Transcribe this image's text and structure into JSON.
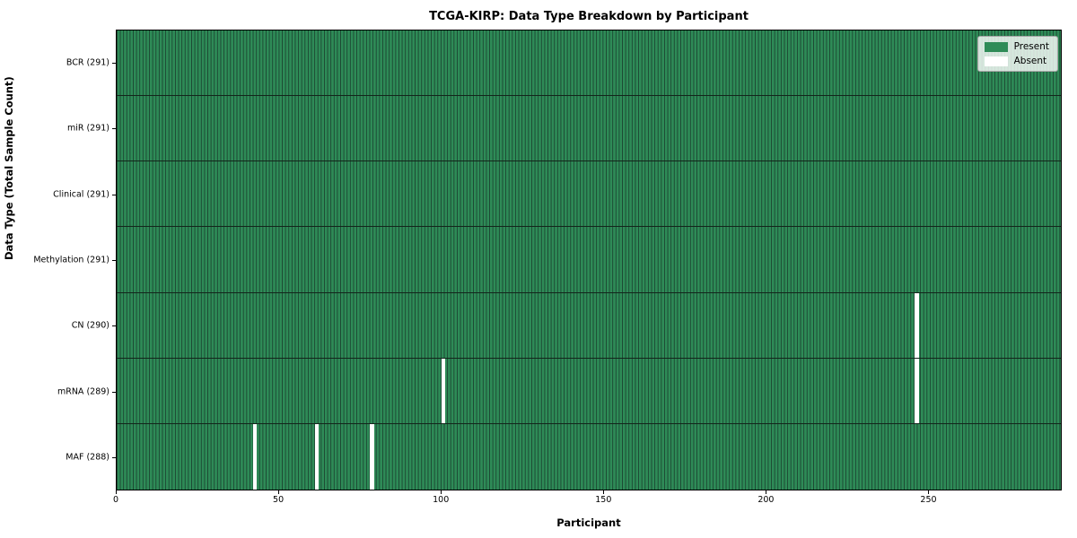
{
  "chart_data": {
    "type": "heatmap",
    "title": "TCGA-KIRP: Data Type Breakdown by Participant",
    "xlabel": "Participant",
    "ylabel": "Data Type (Total Sample Count)",
    "n_participants": 291,
    "x_ticks": [
      0,
      50,
      100,
      150,
      200,
      250
    ],
    "rows": [
      {
        "label": "BCR (291)",
        "data_type": "BCR",
        "total": 291,
        "absent_participants": []
      },
      {
        "label": "miR (291)",
        "data_type": "miR",
        "total": 291,
        "absent_participants": []
      },
      {
        "label": "Clinical (291)",
        "data_type": "Clinical",
        "total": 291,
        "absent_participants": []
      },
      {
        "label": "Methylation (291)",
        "data_type": "Methylation",
        "total": 291,
        "absent_participants": []
      },
      {
        "label": "CN (290)",
        "data_type": "CN",
        "total": 290,
        "absent_participants": [
          246
        ]
      },
      {
        "label": "mRNA (289)",
        "data_type": "mRNA",
        "total": 289,
        "absent_participants": [
          100,
          246
        ]
      },
      {
        "label": "MAF (288)",
        "data_type": "MAF",
        "total": 288,
        "absent_participants": [
          42,
          61,
          78
        ]
      }
    ],
    "colors": {
      "present": "#2e8b57",
      "absent": "#ffffff",
      "bar_edge": "#1c4632"
    },
    "legend": {
      "position": "upper right",
      "items": [
        {
          "label": "Present",
          "color": "#2e8b57"
        },
        {
          "label": "Absent",
          "color": "#ffffff"
        }
      ]
    },
    "grid": false
  }
}
